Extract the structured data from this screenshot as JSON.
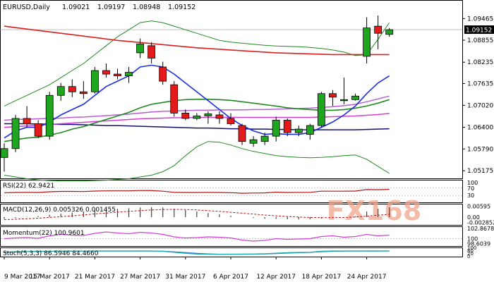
{
  "header": {
    "symbol": "EURUSD,Daily",
    "open": "1.09021",
    "high": "1.09197",
    "low": "1.08948",
    "close": "1.09152"
  },
  "watermark": "FX168",
  "colors": {
    "bull": "#1fa61f",
    "bear": "#e51b1b",
    "ma_red": "#dd1f1f",
    "ma_blue": "#1b2ee0",
    "ma_navy": "#12126e",
    "ma_green": "#1f8a1f",
    "ma_violet": "#b45fd6",
    "ma_magenta": "#d23fd2",
    "band": "#1f8a1f",
    "rsi": "#b01010",
    "momentum": "#d23fd2",
    "stoch_main": "#20a8a8",
    "stoch_signal": "#2a6fd0",
    "macd": "#444444",
    "macd_signal": "#c01010",
    "grid": "#c8c8c8"
  },
  "chart_data": {
    "type": "candlestick",
    "xlabels": [
      "9 Mar 2017",
      "15 Mar 2017",
      "21 Mar 2017",
      "27 Mar 2017",
      "31 Mar 2017",
      "6 Apr 2017",
      "12 Apr 2017",
      "18 Apr 2017",
      "24 Apr 2017"
    ],
    "price_ticks": [
      "1.09465",
      "1.08855",
      "1.08235",
      "1.07635",
      "1.07020",
      "1.06400",
      "1.05790",
      "1.05175"
    ],
    "last_price": "1.09152",
    "ylim": [
      1.0508,
      1.0967
    ],
    "candles": [
      [
        1.0555,
        1.0595,
        1.0515,
        1.058
      ],
      [
        1.058,
        1.0675,
        1.057,
        1.0665
      ],
      [
        1.0665,
        1.07,
        1.064,
        1.065
      ],
      [
        1.065,
        1.066,
        1.061,
        1.0615
      ],
      [
        1.0615,
        1.074,
        1.0605,
        1.073
      ],
      [
        1.073,
        1.0765,
        1.0715,
        1.0755
      ],
      [
        1.0755,
        1.0775,
        1.0725,
        1.074
      ],
      [
        1.074,
        1.077,
        1.072,
        1.0735
      ],
      [
        1.074,
        1.081,
        1.0735,
        1.08
      ],
      [
        1.08,
        1.082,
        1.078,
        1.079
      ],
      [
        1.079,
        1.0805,
        1.0775,
        1.0785
      ],
      [
        1.0785,
        1.081,
        1.0765,
        1.0795
      ],
      [
        1.085,
        1.089,
        1.0835,
        1.0875
      ],
      [
        1.087,
        1.088,
        1.082,
        1.0835
      ],
      [
        1.081,
        1.0825,
        1.076,
        1.077
      ],
      [
        1.076,
        1.077,
        1.067,
        1.068
      ],
      [
        1.068,
        1.069,
        1.066,
        1.0665
      ],
      [
        1.0665,
        1.068,
        1.066,
        1.0672
      ],
      [
        1.0672,
        1.0685,
        1.065,
        1.0678
      ],
      [
        1.0675,
        1.0685,
        1.065,
        1.0665
      ],
      [
        1.0665,
        1.068,
        1.0645,
        1.065
      ],
      [
        1.0645,
        1.065,
        1.059,
        1.06
      ],
      [
        1.0595,
        1.0615,
        1.0585,
        1.0605
      ],
      [
        1.06,
        1.0625,
        1.059,
        1.0615
      ],
      [
        1.0615,
        1.067,
        1.06,
        1.066
      ],
      [
        1.066,
        1.0665,
        1.0615,
        1.0625
      ],
      [
        1.0625,
        1.0645,
        1.0615,
        1.0635
      ],
      [
        1.062,
        1.065,
        1.0605,
        1.0645
      ],
      [
        1.0645,
        1.074,
        1.064,
        1.0735
      ],
      [
        1.0735,
        1.0745,
        1.07,
        1.0725
      ],
      [
        1.0715,
        1.078,
        1.0705,
        1.0718
      ],
      [
        1.0718,
        1.0735,
        1.0715,
        1.0728
      ],
      [
        1.084,
        1.095,
        1.082,
        1.092
      ],
      [
        1.0925,
        1.0955,
        1.086,
        1.0905
      ],
      [
        1.0902,
        1.092,
        1.0895,
        1.0915
      ]
    ],
    "indicators": {
      "ma_red": [
        1.0925,
        1.0921,
        1.0917,
        1.0913,
        1.0909,
        1.0905,
        1.0901,
        1.0897,
        1.0893,
        1.0889,
        1.0885,
        1.0882,
        1.0879,
        1.0876,
        1.0873,
        1.087,
        1.0867,
        1.0864,
        1.0862,
        1.086,
        1.0858,
        1.0856,
        1.0854,
        1.0852,
        1.085,
        1.0849,
        1.0848,
        1.0847,
        1.0846,
        1.0845,
        1.0845,
        1.0845,
        1.0845,
        1.0845,
        1.0845
      ],
      "ma_blue": [
        1.061,
        1.063,
        1.064,
        1.064,
        1.0655,
        1.0675,
        1.069,
        1.0705,
        1.073,
        1.0755,
        1.077,
        1.0785,
        1.081,
        1.0815,
        1.081,
        1.079,
        1.0765,
        1.074,
        1.0715,
        1.069,
        1.0665,
        1.0645,
        1.063,
        1.062,
        1.0622,
        1.062,
        1.062,
        1.0625,
        1.064,
        1.0655,
        1.0675,
        1.07,
        1.0735,
        1.0765,
        1.0785
      ],
      "ma_green": [
        1.06,
        1.0605,
        1.061,
        1.0612,
        1.0618,
        1.0625,
        1.0635,
        1.0642,
        1.0652,
        1.0662,
        1.0672,
        1.0682,
        1.0695,
        1.0705,
        1.071,
        1.0715,
        1.0718,
        1.0719,
        1.0719,
        1.0718,
        1.0716,
        1.0712,
        1.0708,
        1.0704,
        1.07,
        1.0695,
        1.0692,
        1.069,
        1.0688,
        1.0688,
        1.069,
        1.0694,
        1.07,
        1.0708,
        1.0718
      ],
      "ma_violet": [
        1.066,
        1.0662,
        1.0663,
        1.0664,
        1.0665,
        1.0666,
        1.0668,
        1.0669,
        1.0671,
        1.0673,
        1.0675,
        1.0677,
        1.068,
        1.0683,
        1.0685,
        1.0686,
        1.0687,
        1.0688,
        1.0688,
        1.0689,
        1.0689,
        1.0689,
        1.069,
        1.069,
        1.0691,
        1.0692,
        1.0693,
        1.0694,
        1.0696,
        1.0698,
        1.0701,
        1.0705,
        1.0712,
        1.072,
        1.0728
      ],
      "ma_magenta": [
        1.064,
        1.0642,
        1.0644,
        1.0646,
        1.0648,
        1.065,
        1.0652,
        1.0654,
        1.0656,
        1.0658,
        1.066,
        1.0662,
        1.0664,
        1.0665,
        1.0666,
        1.0667,
        1.0667,
        1.0668,
        1.0668,
        1.0668,
        1.0668,
        1.0668,
        1.0668,
        1.0668,
        1.0668,
        1.0668,
        1.0668,
        1.0668,
        1.0669,
        1.067,
        1.0671,
        1.0672,
        1.0674,
        1.0676,
        1.0679
      ],
      "ma_navy": [
        1.065,
        1.065,
        1.065,
        1.0649,
        1.0649,
        1.0648,
        1.0648,
        1.0647,
        1.0646,
        1.0645,
        1.0645,
        1.0644,
        1.0643,
        1.0642,
        1.0641,
        1.064,
        1.0639,
        1.0638,
        1.0638,
        1.0637,
        1.0636,
        1.0636,
        1.0635,
        1.0635,
        1.0634,
        1.0634,
        1.0633,
        1.0633,
        1.0633,
        1.0633,
        1.0633,
        1.0633,
        1.0634,
        1.0635,
        1.0636
      ],
      "band_upper": [
        1.07,
        1.0715,
        1.073,
        1.0745,
        1.076,
        1.078,
        1.08,
        1.082,
        1.0845,
        1.087,
        1.0895,
        1.0915,
        1.0935,
        1.094,
        1.0935,
        1.0925,
        1.0915,
        1.0905,
        1.0895,
        1.0885,
        1.088,
        1.0877,
        1.0874,
        1.0871,
        1.0869,
        1.0868,
        1.0867,
        1.0865,
        1.0862,
        1.0858,
        1.0852,
        1.0842,
        1.0845,
        1.0888,
        1.0935
      ],
      "band_lower": [
        1.0505,
        1.05,
        1.0495,
        1.0492,
        1.049,
        1.0489,
        1.0489,
        1.0489,
        1.049,
        1.0491,
        1.0493,
        1.0495,
        1.05,
        1.0505,
        1.0515,
        1.0532,
        1.056,
        1.0585,
        1.06,
        1.0598,
        1.059,
        1.058,
        1.0572,
        1.0566,
        1.056,
        1.0557,
        1.0555,
        1.0554,
        1.0555,
        1.0557,
        1.056,
        1.0562,
        1.055,
        1.053,
        1.051
      ]
    },
    "subpanels": [
      {
        "label": "RSI(22) 62.9421",
        "ticks_right": [
          "70",
          "30"
        ],
        "top_tick": "100",
        "ylim": [
          0,
          100
        ],
        "levels": [
          70,
          30
        ],
        "series": [
          45,
          46,
          47,
          46,
          50,
          52,
          52,
          51,
          54,
          55,
          55,
          55,
          57,
          56,
          53,
          47,
          46,
          46,
          47,
          46,
          45,
          42,
          43,
          44,
          48,
          46,
          47,
          47,
          53,
          53,
          53,
          54,
          62,
          61,
          63
        ]
      },
      {
        "label": "MACD(12,26,9) 0.005326 0.001455",
        "ticks_right": [
          "0.00595",
          "0.00",
          "-0.002852"
        ],
        "ylim": [
          -0.0035,
          0.0065
        ],
        "macd_hist": [
          -0.001,
          -0.0005,
          0.0002,
          0.0006,
          0.0012,
          0.0018,
          0.0024,
          0.003,
          0.0036,
          0.0041,
          0.0045,
          0.0048,
          0.0052,
          0.0054,
          0.0052,
          0.0046,
          0.0038,
          0.003,
          0.0022,
          0.0015,
          0.0008,
          0.0,
          -0.0005,
          -0.0009,
          -0.001,
          -0.0012,
          -0.0013,
          -0.0012,
          -0.0008,
          -0.0004,
          0.0,
          0.0005,
          0.003,
          0.0045,
          0.0053
        ],
        "signal": [
          -0.0014,
          -0.0012,
          -0.0009,
          -0.0006,
          -0.0002,
          0.0002,
          0.0007,
          0.0012,
          0.0017,
          0.0022,
          0.0027,
          0.0031,
          0.0035,
          0.0039,
          0.0041,
          0.0042,
          0.0041,
          0.0039,
          0.0035,
          0.0031,
          0.0026,
          0.0021,
          0.0016,
          0.0011,
          0.0007,
          0.0003,
          0.0,
          -0.0002,
          -0.0003,
          -0.0003,
          -0.0002,
          0.0,
          0.0005,
          0.001,
          0.0015
        ]
      },
      {
        "label": "Momentum(22) 100.9601",
        "ticks_right": [
          "102.8678",
          "100",
          "98.6039"
        ],
        "ylim": [
          98.3,
          103.1
        ],
        "levels": [
          100
        ],
        "series": [
          100.0,
          100.2,
          100.3,
          100.1,
          100.8,
          101.2,
          101.0,
          100.9,
          101.5,
          101.9,
          101.6,
          101.4,
          101.8,
          101.6,
          101.2,
          100.5,
          100.2,
          100.3,
          100.5,
          100.4,
          100.2,
          99.6,
          99.3,
          99.5,
          100.0,
          99.8,
          99.9,
          100.0,
          100.6,
          100.8,
          100.4,
          100.6,
          101.2,
          100.8,
          101.0
        ]
      },
      {
        "label": "Stoch(5,3,3) 86.5946 84.4660",
        "ticks_right": [
          "100",
          "80",
          "20",
          "0"
        ],
        "ylim": [
          0,
          100
        ],
        "levels": [
          80,
          20
        ],
        "k": [
          60,
          70,
          75,
          78,
          80,
          82,
          83,
          83,
          84,
          85,
          85,
          84,
          86,
          85,
          80,
          60,
          40,
          25,
          20,
          18,
          20,
          22,
          25,
          28,
          40,
          50,
          55,
          60,
          80,
          84,
          85,
          84,
          86,
          86,
          87
        ],
        "d": [
          55,
          65,
          70,
          74,
          77,
          80,
          81,
          82,
          83,
          84,
          84,
          84,
          85,
          85,
          83,
          70,
          55,
          40,
          28,
          22,
          20,
          20,
          22,
          25,
          32,
          42,
          50,
          55,
          70,
          78,
          83,
          84,
          85,
          85,
          84
        ]
      }
    ]
  }
}
